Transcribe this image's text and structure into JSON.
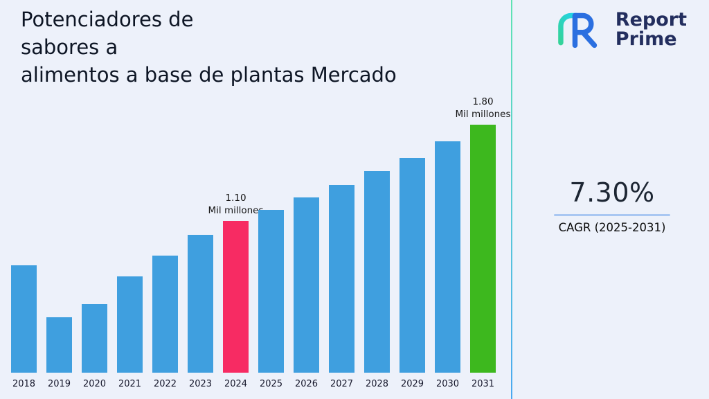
{
  "title": "Potenciadores de\nsabores a\nalimentos a base de plantas Mercado",
  "logo": {
    "word1": "Report",
    "word2": "Prime",
    "navy": "#232e5e",
    "blue": "#2b6fe0",
    "teal": "#34d399"
  },
  "cagr": {
    "value": "7.30%",
    "label": "CAGR (2025-2031)"
  },
  "chart_data": {
    "type": "bar",
    "title": "Potenciadores de sabores a alimentos a base de plantas Mercado",
    "categories": [
      "2018",
      "2019",
      "2020",
      "2021",
      "2022",
      "2023",
      "2024",
      "2025",
      "2026",
      "2027",
      "2028",
      "2029",
      "2030",
      "2031"
    ],
    "values": [
      0.78,
      0.4,
      0.5,
      0.7,
      0.85,
      1.0,
      1.1,
      1.18,
      1.27,
      1.36,
      1.46,
      1.56,
      1.68,
      1.8
    ],
    "unit": "Mil millones",
    "ylim": [
      0,
      1.95
    ],
    "grid": false,
    "legend": "none",
    "bar_color_default": "#3f9fdf",
    "highlight": {
      "2024": "#f72b63",
      "2031": "#3db81e"
    },
    "annotations": [
      {
        "category": "2024",
        "text": "1.10\nMil millones"
      },
      {
        "category": "2031",
        "text": "1.80\nMil millones"
      }
    ]
  }
}
